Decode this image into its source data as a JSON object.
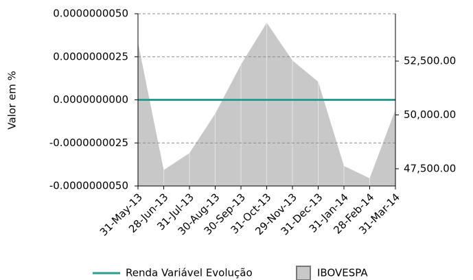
{
  "chart_data": {
    "type": "area-line",
    "y_label": "Valor em %",
    "categories": [
      "31-May-13",
      "28-Jun-13",
      "31-Jul-13",
      "30-Aug-13",
      "30-Sep-13",
      "31-Oct-13",
      "29-Nov-13",
      "31-Dec-13",
      "31-Jan-14",
      "28-Feb-14",
      "31-Mar-14"
    ],
    "series": [
      {
        "name": "Renda Variável Evolução",
        "color": "#2a9d8f",
        "values": [
          0,
          0,
          0,
          0,
          0,
          0,
          0,
          0,
          0,
          0,
          0
        ]
      },
      {
        "name": "IBOVESPA",
        "color": "#c8c8c8",
        "axis": "y2",
        "values": [
          53360,
          47440,
          48230,
          50060,
          52340,
          54280,
          52530,
          51540,
          47630,
          47060,
          50240
        ]
      }
    ],
    "ylim": [
      -5e-09,
      5e-09
    ],
    "yticks": [
      {
        "value": -5e-09,
        "label": "-0.0000000050"
      },
      {
        "value": -2.5e-09,
        "label": "-0.0000000025"
      },
      {
        "value": 0,
        "label": "0.0000000000"
      },
      {
        "value": 2.5e-09,
        "label": "0.0000000025"
      },
      {
        "value": 5e-09,
        "label": "0.0000000050"
      }
    ],
    "y2lim": [
      46700,
      54700
    ],
    "y2ticks": [
      {
        "value": 47500,
        "label": "47,500.00"
      },
      {
        "value": 50000,
        "label": "50,000.00"
      },
      {
        "value": 52500,
        "label": "52,500.00"
      }
    ],
    "grid": true,
    "legend": "bottom"
  }
}
